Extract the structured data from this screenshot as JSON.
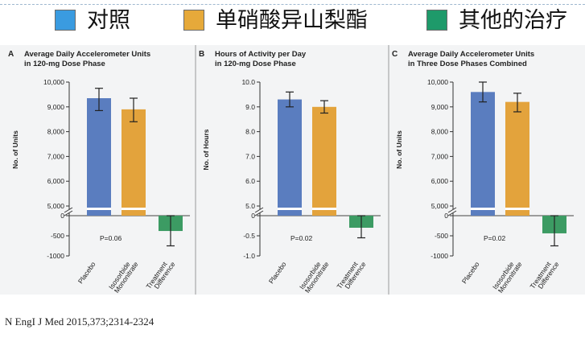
{
  "legend": {
    "items": [
      {
        "label": "对照",
        "color": "#3a9be0"
      },
      {
        "label": "单硝酸异山梨酯",
        "color": "#e6a93a"
      },
      {
        "label": "其他的治疗",
        "color": "#1e9a6a"
      }
    ]
  },
  "colors": {
    "placebo_bar": "#5a7dbf",
    "isosorbide_bar": "#e3a33c",
    "difference_bar": "#3c9b63",
    "panel_bg": "#f3f4f5"
  },
  "chart_data": [
    {
      "type": "bar",
      "letter": "A",
      "title": [
        "Average Daily Accelerometer Units",
        "in 120-mg Dose Phase"
      ],
      "ylabel": "No. of Units",
      "categories": [
        [
          "Placebo"
        ],
        [
          "Isosorbide",
          "Mononitrate"
        ],
        [
          "Treatment",
          "Difference"
        ]
      ],
      "upper_axis": {
        "ylim": [
          5000,
          10000
        ],
        "ticks": [
          5000,
          6000,
          7000,
          8000,
          9000,
          10000
        ],
        "tick_labels": [
          "5,000",
          "6,000",
          "7,000",
          "8,000",
          "9,000",
          "10,000"
        ]
      },
      "lower_axis": {
        "ylim": [
          -1000,
          0
        ],
        "ticks": [
          0,
          -500,
          -1000
        ],
        "tick_labels": [
          "0",
          "-500",
          "-1000"
        ]
      },
      "values": [
        9350,
        8900,
        -381
      ],
      "error_low": [
        8850,
        8400,
        -750
      ],
      "error_high": [
        9750,
        9350,
        0
      ],
      "p_value": "P=0.06"
    },
    {
      "type": "bar",
      "letter": "B",
      "title": [
        "Hours of Activity per Day",
        "in 120-mg Dose Phase"
      ],
      "ylabel": "No. of Hours",
      "categories": [
        [
          "Placebo"
        ],
        [
          "Isosorbide",
          "Mononitrate"
        ],
        [
          "Treatment",
          "Difference"
        ]
      ],
      "upper_axis": {
        "ylim": [
          5.0,
          10.0
        ],
        "ticks": [
          5.0,
          6.0,
          7.0,
          8.0,
          9.0,
          10.0
        ],
        "tick_labels": [
          "5.0",
          "6.0",
          "7.0",
          "8.0",
          "9.0",
          "10.0"
        ]
      },
      "lower_axis": {
        "ylim": [
          -1.0,
          0
        ],
        "ticks": [
          0,
          -0.5,
          -1.0
        ],
        "tick_labels": [
          "0",
          "-0.5",
          "-1.0"
        ]
      },
      "values": [
        9.3,
        9.0,
        -0.3
      ],
      "error_low": [
        9.0,
        8.75,
        -0.55
      ],
      "error_high": [
        9.6,
        9.25,
        0
      ],
      "p_value": "P=0.02"
    },
    {
      "type": "bar",
      "letter": "C",
      "title": [
        "Average Daily Accelerometer Units",
        "in Three Dose Phases Combined"
      ],
      "ylabel": "No. of Units",
      "categories": [
        [
          "Placebo"
        ],
        [
          "Isosorbide",
          "Mononitrate"
        ],
        [
          "Treatment",
          "Difference"
        ]
      ],
      "upper_axis": {
        "ylim": [
          5000,
          10000
        ],
        "ticks": [
          5000,
          6000,
          7000,
          8000,
          9000,
          10000
        ],
        "tick_labels": [
          "5,000",
          "6,000",
          "7,000",
          "8,000",
          "9,000",
          "10,000"
        ]
      },
      "lower_axis": {
        "ylim": [
          -1000,
          0
        ],
        "ticks": [
          0,
          -500,
          -1000
        ],
        "tick_labels": [
          "0",
          "-500",
          "-1000"
        ]
      },
      "values": [
        9600,
        9200,
        -439
      ],
      "error_low": [
        9200,
        8800,
        -750
      ],
      "error_high": [
        10000,
        9550,
        0
      ],
      "p_value": "P=0.02"
    }
  ],
  "footer": {
    "citation": "N EngI J Med 2015,373;2314-2324"
  }
}
